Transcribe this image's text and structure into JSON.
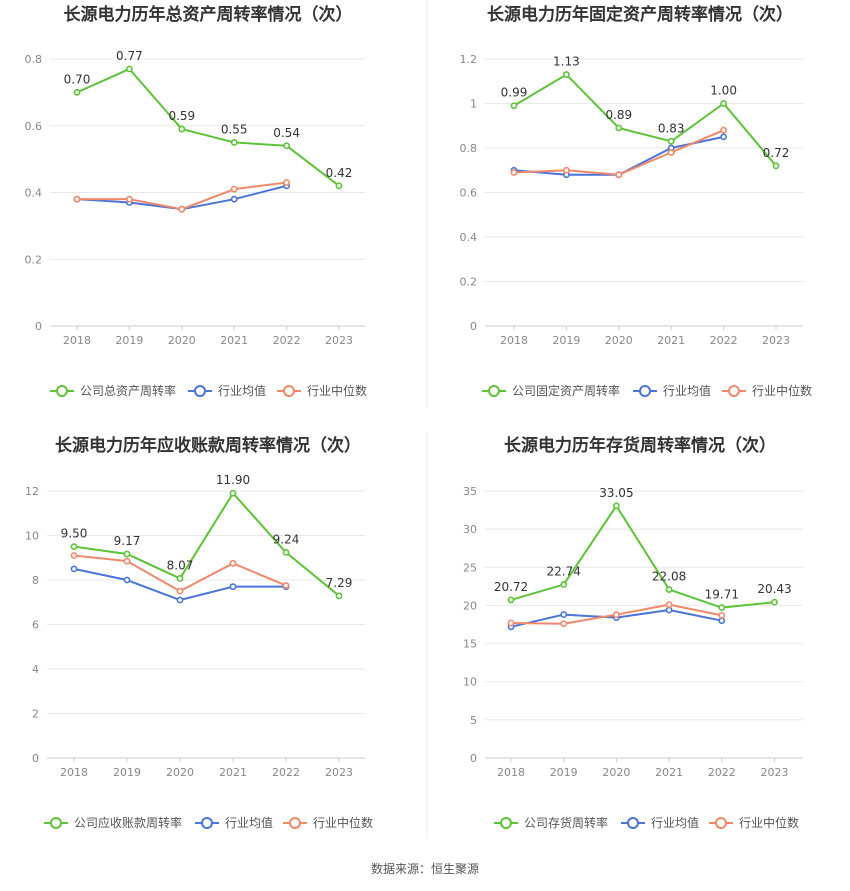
{
  "source_text": "数据来源：恒生聚源",
  "colors": {
    "company": "#5cc337",
    "avg": "#4a74d8",
    "median": "#f0896a"
  },
  "chart_data": [
    {
      "type": "line",
      "title": "长源电力历年总资产周转率情况（次）",
      "categories": [
        "2018",
        "2019",
        "2020",
        "2021",
        "2022",
        "2023"
      ],
      "ylim": [
        0,
        0.8
      ],
      "yticks": [
        "0",
        "0.2",
        "0.4",
        "0.6",
        "0.8"
      ],
      "ytick_values": [
        0,
        0.2,
        0.4,
        0.6,
        0.8
      ],
      "series": [
        {
          "name": "公司总资产周转率",
          "values": [
            0.7,
            0.77,
            0.59,
            0.55,
            0.54,
            0.42
          ],
          "labels": [
            "0.70",
            "0.77",
            "0.59",
            "0.55",
            "0.54",
            "0.42"
          ]
        },
        {
          "name": "行业均值",
          "values": [
            0.38,
            0.37,
            0.35,
            0.38,
            0.42,
            null
          ]
        },
        {
          "name": "行业中位数",
          "values": [
            0.38,
            0.38,
            0.35,
            0.41,
            0.43,
            null
          ]
        }
      ],
      "grid": true,
      "legend": "bottom"
    },
    {
      "type": "line",
      "title": "长源电力历年固定资产周转率情况（次）",
      "categories": [
        "2018",
        "2019",
        "2020",
        "2021",
        "2022",
        "2023"
      ],
      "ylim": [
        0,
        1.2
      ],
      "yticks": [
        "0",
        "0.2",
        "0.4",
        "0.6",
        "0.8",
        "1",
        "1.2"
      ],
      "ytick_values": [
        0,
        0.2,
        0.4,
        0.6,
        0.8,
        1.0,
        1.2
      ],
      "series": [
        {
          "name": "公司固定资产周转率",
          "values": [
            0.99,
            1.13,
            0.89,
            0.83,
            1.0,
            0.72
          ],
          "labels": [
            "0.99",
            "1.13",
            "0.89",
            "0.83",
            "1.00",
            "0.72"
          ]
        },
        {
          "name": "行业均值",
          "values": [
            0.7,
            0.68,
            0.68,
            0.8,
            0.85,
            null
          ]
        },
        {
          "name": "行业中位数",
          "values": [
            0.69,
            0.7,
            0.68,
            0.78,
            0.88,
            null
          ]
        }
      ],
      "grid": true,
      "legend": "bottom"
    },
    {
      "type": "line",
      "title": "长源电力历年应收账款周转率情况（次）",
      "categories": [
        "2018",
        "2019",
        "2020",
        "2021",
        "2022",
        "2023"
      ],
      "ylim": [
        0,
        12
      ],
      "yticks": [
        "0",
        "2",
        "4",
        "6",
        "8",
        "10",
        "12"
      ],
      "ytick_values": [
        0,
        2,
        4,
        6,
        8,
        10,
        12
      ],
      "series": [
        {
          "name": "公司应收账款周转率",
          "values": [
            9.5,
            9.17,
            8.07,
            11.9,
            9.24,
            7.29
          ],
          "labels": [
            "9.50",
            "9.17",
            "8.07",
            "11.90",
            "9.24",
            "7.29"
          ]
        },
        {
          "name": "行业均值",
          "values": [
            8.5,
            8.0,
            7.1,
            7.7,
            7.7,
            null
          ]
        },
        {
          "name": "行业中位数",
          "values": [
            9.1,
            8.85,
            7.5,
            8.75,
            7.75,
            null
          ]
        }
      ],
      "grid": true,
      "legend": "bottom"
    },
    {
      "type": "line",
      "title": "长源电力历年存货周转率情况（次）",
      "categories": [
        "2018",
        "2019",
        "2020",
        "2021",
        "2022",
        "2023"
      ],
      "ylim": [
        0,
        35
      ],
      "yticks": [
        "0",
        "5",
        "10",
        "15",
        "20",
        "25",
        "30",
        "35"
      ],
      "ytick_values": [
        0,
        5,
        10,
        15,
        20,
        25,
        30,
        35
      ],
      "series": [
        {
          "name": "公司存货周转率",
          "values": [
            20.72,
            22.74,
            33.05,
            22.08,
            19.71,
            20.43
          ],
          "labels": [
            "20.72",
            "22.74",
            "33.05",
            "22.08",
            "19.71",
            "20.43"
          ]
        },
        {
          "name": "行业均值",
          "values": [
            17.2,
            18.8,
            18.4,
            19.4,
            18.0,
            null
          ]
        },
        {
          "name": "行业中位数",
          "values": [
            17.7,
            17.6,
            18.8,
            20.1,
            18.7,
            null
          ]
        }
      ],
      "grid": true,
      "legend": "bottom"
    }
  ]
}
